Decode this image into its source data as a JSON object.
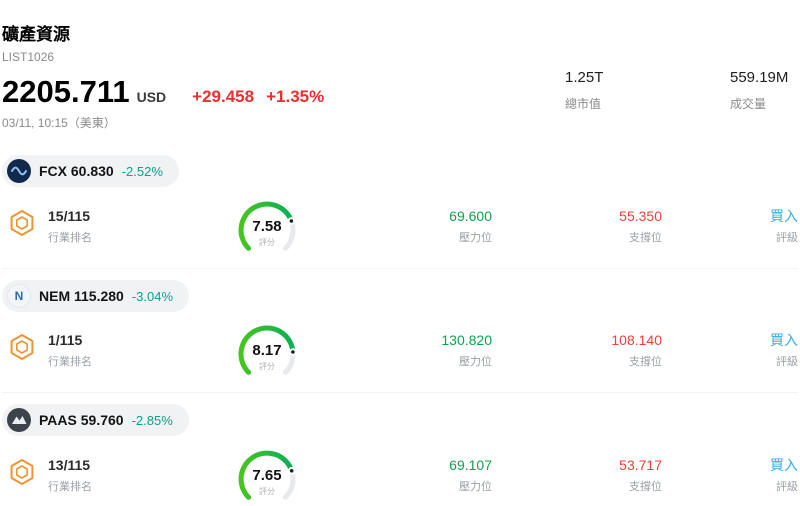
{
  "colors": {
    "up_red": "#ed2f2f",
    "down_teal": "#0d9f8a",
    "resistance_green": "#0ea24e",
    "support_red": "#e8423a",
    "rating_blue": "#38abdf",
    "gauge_green_start": "#46c51f",
    "gauge_green_end": "#0ab056",
    "hexagon_orange": "#ef9433"
  },
  "header": {
    "title": "礦產資源",
    "list_id": "LIST1026",
    "price": "2205.711",
    "currency": "USD",
    "change_value": "+29.458",
    "change_percent": "+1.35%",
    "timestamp": "03/11, 10:15（美東）",
    "market_cap": {
      "value": "1.25T",
      "label": "總市值"
    },
    "volume": {
      "value": "559.19M",
      "label": "成交量"
    }
  },
  "labels": {
    "industry_rank": "行業排名",
    "score": "評分",
    "resistance": "壓力位",
    "support": "支撐位",
    "rating": "評級"
  },
  "stocks": [
    {
      "ticker": "FCX",
      "price": "60.830",
      "display": "FCX 60.830",
      "change_percent": "-2.52%",
      "industry_rank": "15/115",
      "score": "7.58",
      "score_value": 7.58,
      "resistance": "69.600",
      "support": "55.350",
      "rating": "買入"
    },
    {
      "ticker": "NEM",
      "price": "115.280",
      "display": "NEM 115.280",
      "change_percent": "-3.04%",
      "industry_rank": "1/115",
      "score": "8.17",
      "score_value": 8.17,
      "resistance": "130.820",
      "support": "108.140",
      "rating": "買入"
    },
    {
      "ticker": "PAAS",
      "price": "59.760",
      "display": "PAAS 59.760",
      "change_percent": "-2.85%",
      "industry_rank": "13/115",
      "score": "7.65",
      "score_value": 7.65,
      "resistance": "69.107",
      "support": "53.717",
      "rating": "買入"
    }
  ]
}
